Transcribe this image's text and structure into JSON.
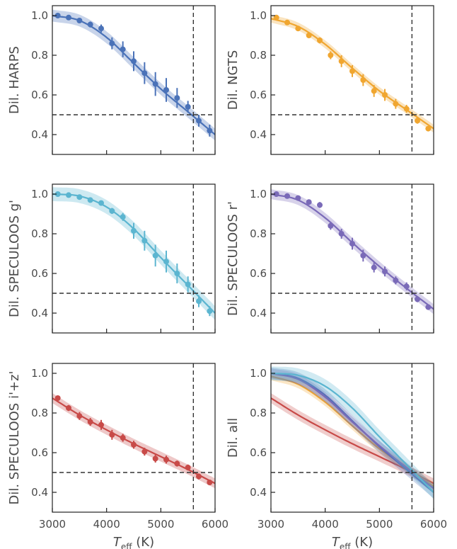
{
  "chart_data": [
    {
      "type": "scatter",
      "ylabel": "Dil. HARPS",
      "xlabel": "",
      "color": "#4a72b8",
      "xlim": [
        3000,
        6000
      ],
      "ylim": [
        0.3,
        1.05
      ],
      "x_ticks": [
        3000,
        4000,
        5000,
        6000
      ],
      "x_tick_labels_shown": false,
      "y_ticks": [
        0.4,
        0.6,
        0.8,
        1.0
      ],
      "vline_x": 5600,
      "hline_y": 0.5,
      "x": [
        3100,
        3300,
        3500,
        3700,
        3900,
        4100,
        4300,
        4500,
        4700,
        4900,
        5100,
        5300,
        5500,
        5700,
        5900
      ],
      "y": [
        1.0,
        0.99,
        0.975,
        0.955,
        0.935,
        0.86,
        0.83,
        0.77,
        0.71,
        0.655,
        0.625,
        0.585,
        0.54,
        0.47,
        0.42
      ],
      "yerr": [
        0.005,
        0.008,
        0.012,
        0.015,
        0.02,
        0.03,
        0.04,
        0.05,
        0.055,
        0.06,
        0.06,
        0.05,
        0.03,
        0.03,
        0.03
      ],
      "curve_x": [
        3000,
        3500,
        4000,
        4500,
        5000,
        5500,
        6000
      ],
      "curve_y": [
        1.0,
        0.975,
        0.89,
        0.76,
        0.63,
        0.515,
        0.4
      ],
      "band": 0.03
    },
    {
      "type": "scatter",
      "ylabel": "Dil. NGTS",
      "xlabel": "",
      "color": "#f0a630",
      "xlim": [
        3000,
        6000
      ],
      "ylim": [
        0.3,
        1.05
      ],
      "x_ticks": [
        3000,
        4000,
        5000,
        6000
      ],
      "x_tick_labels_shown": false,
      "y_ticks": [
        0.4,
        0.6,
        0.8,
        1.0
      ],
      "vline_x": 5600,
      "hline_y": 0.5,
      "x": [
        3100,
        3300,
        3500,
        3700,
        3900,
        4100,
        4300,
        4500,
        4700,
        4900,
        5100,
        5300,
        5500,
        5700,
        5900
      ],
      "y": [
        0.99,
        0.965,
        0.935,
        0.9,
        0.875,
        0.8,
        0.77,
        0.72,
        0.675,
        0.62,
        0.6,
        0.555,
        0.53,
        0.47,
        0.43
      ],
      "yerr": [
        0.01,
        0.01,
        0.01,
        0.012,
        0.015,
        0.02,
        0.03,
        0.03,
        0.03,
        0.03,
        0.03,
        0.025,
        0.02,
        0.015,
        0.01
      ],
      "curve_x": [
        3000,
        3500,
        4000,
        4500,
        5000,
        5500,
        6000
      ],
      "curve_y": [
        0.985,
        0.945,
        0.855,
        0.735,
        0.62,
        0.525,
        0.43
      ],
      "band": 0.02
    },
    {
      "type": "scatter",
      "ylabel": "Dil. SPECULOOS g'",
      "xlabel": "",
      "color": "#5bb5d0",
      "xlim": [
        3000,
        6000
      ],
      "ylim": [
        0.3,
        1.05
      ],
      "x_ticks": [
        3000,
        4000,
        5000,
        6000
      ],
      "x_tick_labels_shown": false,
      "y_ticks": [
        0.4,
        0.6,
        0.8,
        1.0
      ],
      "vline_x": 5600,
      "hline_y": 0.5,
      "x": [
        3100,
        3300,
        3500,
        3700,
        3900,
        4100,
        4300,
        4500,
        4700,
        4900,
        5100,
        5300,
        5500,
        5700,
        5900
      ],
      "y": [
        1.0,
        0.995,
        0.985,
        0.97,
        0.955,
        0.915,
        0.885,
        0.815,
        0.765,
        0.69,
        0.66,
        0.6,
        0.545,
        0.46,
        0.41
      ],
      "yerr": [
        0.004,
        0.006,
        0.008,
        0.01,
        0.012,
        0.015,
        0.02,
        0.04,
        0.05,
        0.055,
        0.055,
        0.05,
        0.04,
        0.03,
        0.025
      ],
      "curve_x": [
        3000,
        3500,
        4000,
        4500,
        5000,
        5500,
        6000
      ],
      "curve_y": [
        1.0,
        0.99,
        0.935,
        0.825,
        0.68,
        0.54,
        0.4
      ],
      "band": 0.035
    },
    {
      "type": "scatter",
      "ylabel": "Dil. SPECULOOS r'",
      "xlabel": "",
      "color": "#7a6ab8",
      "xlim": [
        3000,
        6000
      ],
      "ylim": [
        0.3,
        1.05
      ],
      "x_ticks": [
        3000,
        4000,
        5000,
        6000
      ],
      "x_tick_labels_shown": false,
      "y_ticks": [
        0.4,
        0.6,
        0.8,
        1.0
      ],
      "vline_x": 5600,
      "hline_y": 0.5,
      "x": [
        3100,
        3300,
        3500,
        3700,
        3900,
        4100,
        4300,
        4500,
        4700,
        4900,
        5100,
        5300,
        5500,
        5700,
        5900
      ],
      "y": [
        1.0,
        0.99,
        0.98,
        0.96,
        0.945,
        0.84,
        0.8,
        0.75,
        0.69,
        0.63,
        0.61,
        0.565,
        0.535,
        0.47,
        0.43
      ],
      "yerr": [
        0.005,
        0.008,
        0.01,
        0.012,
        0.015,
        0.02,
        0.025,
        0.03,
        0.03,
        0.025,
        0.025,
        0.02,
        0.02,
        0.015,
        0.01
      ],
      "curve_x": [
        3000,
        3500,
        4000,
        4500,
        5000,
        5500,
        6000
      ],
      "curve_y": [
        1.0,
        0.97,
        0.88,
        0.755,
        0.635,
        0.525,
        0.42
      ],
      "band": 0.025
    },
    {
      "type": "scatter",
      "ylabel": "Dil. SPECULOOS i'+z'",
      "xlabel": "T_eff (K)",
      "color": "#c84a48",
      "xlim": [
        3000,
        6000
      ],
      "ylim": [
        0.3,
        1.05
      ],
      "x_ticks": [
        3000,
        4000,
        5000,
        6000
      ],
      "x_tick_labels_shown": true,
      "y_ticks": [
        0.4,
        0.6,
        0.8,
        1.0
      ],
      "vline_x": 5600,
      "hline_y": 0.5,
      "x": [
        3100,
        3300,
        3500,
        3700,
        3900,
        4100,
        4300,
        4500,
        4700,
        4900,
        5100,
        5300,
        5500,
        5700,
        5900
      ],
      "y": [
        0.875,
        0.825,
        0.785,
        0.755,
        0.74,
        0.69,
        0.675,
        0.64,
        0.605,
        0.57,
        0.565,
        0.545,
        0.525,
        0.48,
        0.45
      ],
      "yerr": [
        0.012,
        0.015,
        0.02,
        0.02,
        0.025,
        0.025,
        0.02,
        0.02,
        0.02,
        0.02,
        0.02,
        0.015,
        0.015,
        0.015,
        0.01
      ],
      "curve_x": [
        3000,
        3500,
        4000,
        4500,
        5000,
        5500,
        6000
      ],
      "curve_y": [
        0.875,
        0.79,
        0.715,
        0.645,
        0.58,
        0.515,
        0.445
      ],
      "band": 0.025
    },
    {
      "type": "line",
      "ylabel": "Dil. all",
      "xlabel": "T_eff (K)",
      "xlim": [
        3000,
        6000
      ],
      "ylim": [
        0.3,
        1.05
      ],
      "x_ticks": [
        3000,
        4000,
        5000,
        6000
      ],
      "x_tick_labels_shown": true,
      "y_ticks": [
        0.4,
        0.6,
        0.8,
        1.0
      ],
      "vline_x": 5600,
      "hline_y": 0.5,
      "series": [
        {
          "color": "#c84a48",
          "x": [
            3000,
            3500,
            4000,
            4500,
            5000,
            5500,
            6000
          ],
          "y": [
            0.875,
            0.79,
            0.715,
            0.645,
            0.58,
            0.515,
            0.445
          ],
          "band": 0.025
        },
        {
          "color": "#f0a630",
          "x": [
            3000,
            3500,
            4000,
            4500,
            5000,
            5500,
            6000
          ],
          "y": [
            0.985,
            0.945,
            0.855,
            0.735,
            0.62,
            0.525,
            0.43
          ],
          "band": 0.02
        },
        {
          "color": "#4a72b8",
          "x": [
            3000,
            3500,
            4000,
            4500,
            5000,
            5500,
            6000
          ],
          "y": [
            1.0,
            0.975,
            0.89,
            0.76,
            0.63,
            0.515,
            0.4
          ],
          "band": 0.03
        },
        {
          "color": "#7a6ab8",
          "x": [
            3000,
            3500,
            4000,
            4500,
            5000,
            5500,
            6000
          ],
          "y": [
            1.0,
            0.97,
            0.88,
            0.755,
            0.635,
            0.525,
            0.42
          ],
          "band": 0.025
        },
        {
          "color": "#5bb5d0",
          "x": [
            3000,
            3500,
            4000,
            4500,
            5000,
            5500,
            6000
          ],
          "y": [
            1.0,
            0.99,
            0.935,
            0.825,
            0.68,
            0.54,
            0.4
          ],
          "band": 0.035
        }
      ]
    }
  ]
}
